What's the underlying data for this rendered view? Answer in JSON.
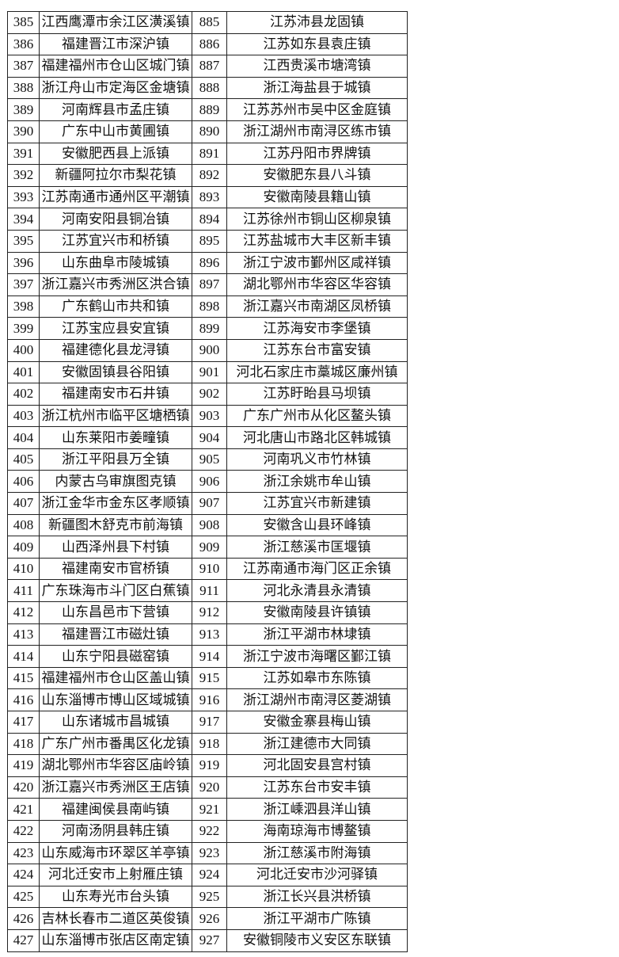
{
  "rows": [
    [
      "385",
      "江西鹰潭市余江区潢溪镇",
      "885",
      "江苏沛县龙固镇"
    ],
    [
      "386",
      "福建晋江市深沪镇",
      "886",
      "江苏如东县袁庄镇"
    ],
    [
      "387",
      "福建福州市仓山区城门镇",
      "887",
      "江西贵溪市塘湾镇"
    ],
    [
      "388",
      "浙江舟山市定海区金塘镇",
      "888",
      "浙江海盐县于城镇"
    ],
    [
      "389",
      "河南辉县市孟庄镇",
      "889",
      "江苏苏州市吴中区金庭镇"
    ],
    [
      "390",
      "广东中山市黄圃镇",
      "890",
      "浙江湖州市南浔区练市镇"
    ],
    [
      "391",
      "安徽肥西县上派镇",
      "891",
      "江苏丹阳市界牌镇"
    ],
    [
      "392",
      "新疆阿拉尔市梨花镇",
      "892",
      "安徽肥东县八斗镇"
    ],
    [
      "393",
      "江苏南通市通州区平潮镇",
      "893",
      "安徽南陵县籍山镇"
    ],
    [
      "394",
      "河南安阳县铜冶镇",
      "894",
      "江苏徐州市铜山区柳泉镇"
    ],
    [
      "395",
      "江苏宜兴市和桥镇",
      "895",
      "江苏盐城市大丰区新丰镇"
    ],
    [
      "396",
      "山东曲阜市陵城镇",
      "896",
      "浙江宁波市鄞州区咸祥镇"
    ],
    [
      "397",
      "浙江嘉兴市秀洲区洪合镇",
      "897",
      "湖北鄂州市华容区华容镇"
    ],
    [
      "398",
      "广东鹤山市共和镇",
      "898",
      "浙江嘉兴市南湖区凤桥镇"
    ],
    [
      "399",
      "江苏宝应县安宜镇",
      "899",
      "江苏海安市李堡镇"
    ],
    [
      "400",
      "福建德化县龙浔镇",
      "900",
      "江苏东台市富安镇"
    ],
    [
      "401",
      "安徽固镇县谷阳镇",
      "901",
      "河北石家庄市藁城区廉州镇"
    ],
    [
      "402",
      "福建南安市石井镇",
      "902",
      "江苏盱眙县马坝镇"
    ],
    [
      "403",
      "浙江杭州市临平区塘栖镇",
      "903",
      "广东广州市从化区鳌头镇"
    ],
    [
      "404",
      "山东莱阳市姜疃镇",
      "904",
      "河北唐山市路北区韩城镇"
    ],
    [
      "405",
      "浙江平阳县万全镇",
      "905",
      "河南巩义市竹林镇"
    ],
    [
      "406",
      "内蒙古乌审旗图克镇",
      "906",
      "浙江余姚市牟山镇"
    ],
    [
      "407",
      "浙江金华市金东区孝顺镇",
      "907",
      "江苏宜兴市新建镇"
    ],
    [
      "408",
      "新疆图木舒克市前海镇",
      "908",
      "安徽含山县环峰镇"
    ],
    [
      "409",
      "山西泽州县下村镇",
      "909",
      "浙江慈溪市匡堰镇"
    ],
    [
      "410",
      "福建南安市官桥镇",
      "910",
      "江苏南通市海门区正余镇"
    ],
    [
      "411",
      "广东珠海市斗门区白蕉镇",
      "911",
      "河北永清县永清镇"
    ],
    [
      "412",
      "山东昌邑市下营镇",
      "912",
      "安徽南陵县许镇镇"
    ],
    [
      "413",
      "福建晋江市磁灶镇",
      "913",
      "浙江平湖市林埭镇"
    ],
    [
      "414",
      "山东宁阳县磁窑镇",
      "914",
      "浙江宁波市海曙区鄞江镇"
    ],
    [
      "415",
      "福建福州市仓山区盖山镇",
      "915",
      "江苏如皋市东陈镇"
    ],
    [
      "416",
      "山东淄博市博山区域城镇",
      "916",
      "浙江湖州市南浔区菱湖镇"
    ],
    [
      "417",
      "山东诸城市昌城镇",
      "917",
      "安徽金寨县梅山镇"
    ],
    [
      "418",
      "广东广州市番禺区化龙镇",
      "918",
      "浙江建德市大同镇"
    ],
    [
      "419",
      "湖北鄂州市华容区庙岭镇",
      "919",
      "河北固安县宫村镇"
    ],
    [
      "420",
      "浙江嘉兴市秀洲区王店镇",
      "920",
      "江苏东台市安丰镇"
    ],
    [
      "421",
      "福建闽侯县南屿镇",
      "921",
      "浙江嵊泗县洋山镇"
    ],
    [
      "422",
      "河南汤阴县韩庄镇",
      "922",
      "海南琼海市博鳌镇"
    ],
    [
      "423",
      "山东威海市环翠区羊亭镇",
      "923",
      "浙江慈溪市附海镇"
    ],
    [
      "424",
      "河北迁安市上射雁庄镇",
      "924",
      "河北迁安市沙河驿镇"
    ],
    [
      "425",
      "山东寿光市台头镇",
      "925",
      "浙江长兴县洪桥镇"
    ],
    [
      "426",
      "吉林长春市二道区英俊镇",
      "926",
      "浙江平湖市广陈镇"
    ],
    [
      "427",
      "山东淄博市张店区南定镇",
      "927",
      "安徽铜陵市义安区东联镇"
    ]
  ]
}
